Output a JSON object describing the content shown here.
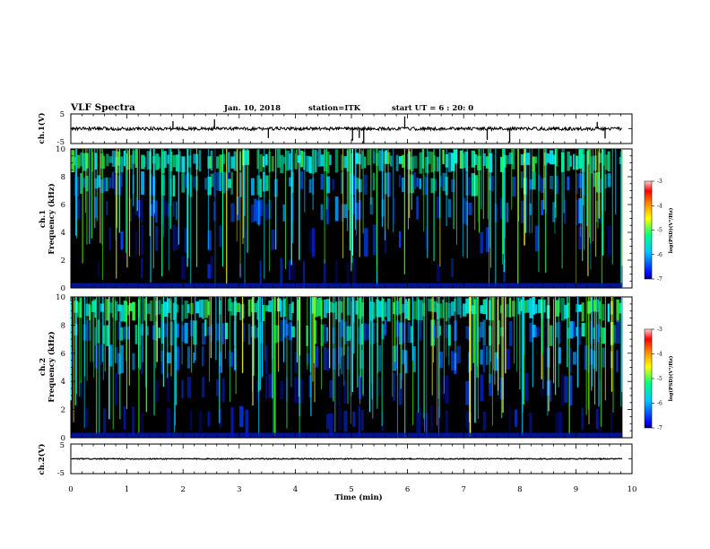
{
  "header": {
    "title": "VLF Spectra",
    "date": "Jan. 10, 2018",
    "station": "station=ITK",
    "start": "start UT =  6 : 20: 0"
  },
  "colors": {
    "background": "#000000",
    "colormap": [
      "#0000ff",
      "#00c8ff",
      "#00ff80",
      "#ffff00",
      "#ff8000",
      "#ff0000",
      "#ffc0c0"
    ]
  },
  "chart_data": [
    {
      "type": "line",
      "name": "ch1-waveform",
      "ylabel": "ch.1(V)",
      "ylim": [
        -5,
        5
      ],
      "yticks": [
        "5",
        "-5"
      ],
      "xlim": [
        0,
        10
      ],
      "baseline": 0,
      "note_spikes_x": [
        1.82,
        2.56,
        3.52,
        5.02,
        5.14,
        5.22,
        5.95,
        7.42,
        7.82,
        9.38,
        9.52
      ]
    },
    {
      "type": "heatmap",
      "name": "ch1-spectrogram",
      "ylabel_line1": "ch.1",
      "ylabel_line2": "Frequency (kHz)",
      "ylim": [
        0,
        10
      ],
      "yticks": [
        "0",
        "2",
        "4",
        "6",
        "8",
        "10"
      ],
      "xlim": [
        0,
        10
      ],
      "data_extent_x": [
        0,
        9.83
      ],
      "colorbar": {
        "label": "log(PSD)(V²/Hz)",
        "range": [
          -7,
          -3
        ],
        "ticks": [
          "-3",
          "-4",
          "-5",
          "-6",
          "-7"
        ]
      }
    },
    {
      "type": "heatmap",
      "name": "ch2-spectrogram",
      "ylabel_line1": "ch.2",
      "ylabel_line2": "Frequency (kHz)",
      "ylim": [
        0,
        10
      ],
      "yticks": [
        "0",
        "2",
        "4",
        "6",
        "8",
        "10"
      ],
      "xlim": [
        0,
        10
      ],
      "data_extent_x": [
        0,
        9.83
      ],
      "colorbar": {
        "label": "log(PSD)(V²/Hz)",
        "range": [
          -7,
          -3
        ],
        "ticks": [
          "-3",
          "-4",
          "-5",
          "-6",
          "-7"
        ]
      }
    },
    {
      "type": "line",
      "name": "ch2-waveform",
      "ylabel": "ch.2(V)",
      "ylim": [
        -5,
        5
      ],
      "yticks": [
        "5",
        "-5"
      ],
      "xlim": [
        0,
        10
      ],
      "baseline": 0
    }
  ],
  "xaxis": {
    "label": "Time (min)",
    "range": [
      0,
      10
    ],
    "ticks": [
      "0",
      "1",
      "2",
      "3",
      "4",
      "5",
      "6",
      "7",
      "8",
      "9",
      "10"
    ]
  }
}
